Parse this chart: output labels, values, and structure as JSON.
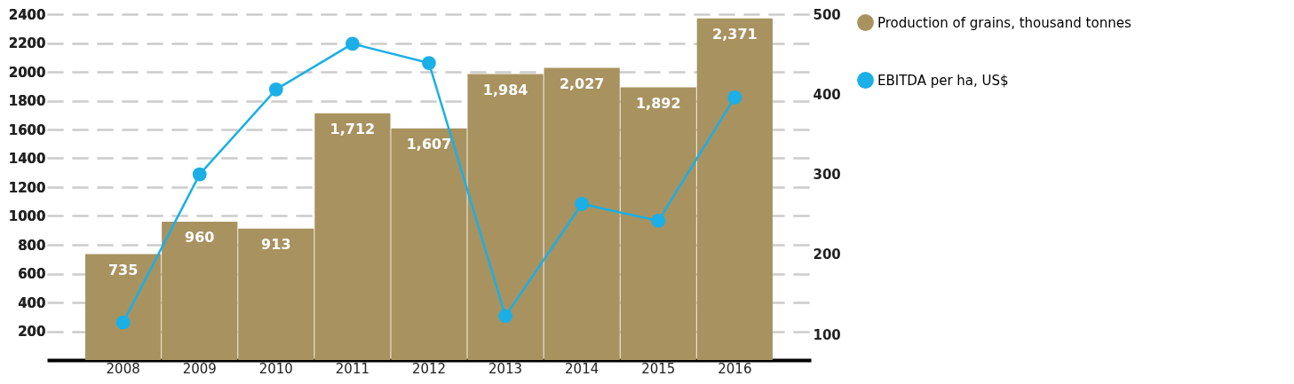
{
  "chart_data": {
    "type": "bar",
    "categories": [
      "2008",
      "2009",
      "2010",
      "2011",
      "2012",
      "2013",
      "2014",
      "2015",
      "2016"
    ],
    "series": [
      {
        "name": "Production of grains, thousand tonnes",
        "color": "#a8925f",
        "values": [
          735,
          960,
          913,
          1712,
          1607,
          1984,
          2027,
          1892,
          2371
        ],
        "value_labels": [
          "735",
          "960",
          "913",
          "1,712",
          "1,607",
          "1,984",
          "2,027",
          "1,892",
          "2,371"
        ]
      },
      {
        "name": "EBITDA per ha, US$",
        "type": "line",
        "axis": "y2",
        "color": "#1aafe6",
        "values": [
          115,
          300,
          406,
          463,
          439,
          123,
          263,
          242,
          396
        ]
      }
    ],
    "ylim": [
      0,
      2400
    ],
    "yticks": [
      200,
      400,
      600,
      800,
      1000,
      1200,
      1400,
      1600,
      1800,
      2000,
      2200,
      2400
    ],
    "y2lim": [
      68,
      500
    ],
    "y2ticks": [
      100,
      200,
      300,
      400,
      500
    ],
    "grid": "y",
    "legend": "right",
    "marker": "circle",
    "line_style": "solid"
  }
}
